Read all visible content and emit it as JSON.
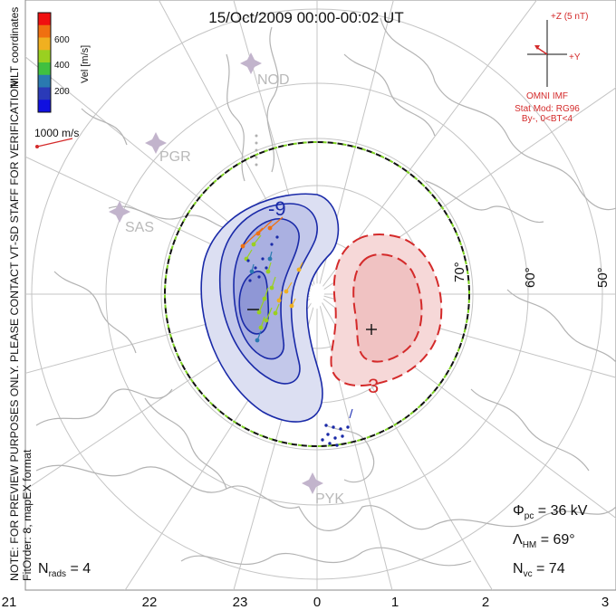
{
  "title": "15/Oct/2009 00:00-00:02 UT",
  "velocity_scale": {
    "label": "Vel [m/s]",
    "ticks": [
      "600",
      "400",
      "200"
    ],
    "colors": [
      "#f01010",
      "#f07010",
      "#f0b020",
      "#9ad020",
      "#40c040",
      "#2a7ab0",
      "#2a3ab8",
      "#1010e0"
    ]
  },
  "coordinate_label": "MLT coordinates",
  "reference_vector": "1000 m/s",
  "disclaimer": "NOTE: FOR PREVIEW PURPOSES ONLY. PLEASE CONTACT VT-SD STAFF FOR VERIFICATION.",
  "fit_info": "FitOrder: 8,  mapEX format",
  "stations": [
    "NOD",
    "PGR",
    "SAS",
    "PYK"
  ],
  "latitude_labels": [
    "70°",
    "60°",
    "50°"
  ],
  "contour_labels": {
    "negative": "-9",
    "positive": "3"
  },
  "imf": {
    "scale": "+Z (5 nT)",
    "axis": "+Y",
    "source": "OMNI IMF",
    "model": "Stat Mod: RG96",
    "condition": "By-, 0<BT<4"
  },
  "stats": {
    "phi_pc": "36 kV",
    "lambda_hm": "69°",
    "n_vc": "74",
    "n_rads": "4"
  },
  "mlt_ticks": [
    "21",
    "22",
    "23",
    "0",
    "1",
    "2",
    "3"
  ],
  "colors": {
    "negative": "#1a2aa8",
    "positive": "#d42a2a",
    "grid": "#c4c4c4",
    "boundary_dash": "#7ed321"
  }
}
